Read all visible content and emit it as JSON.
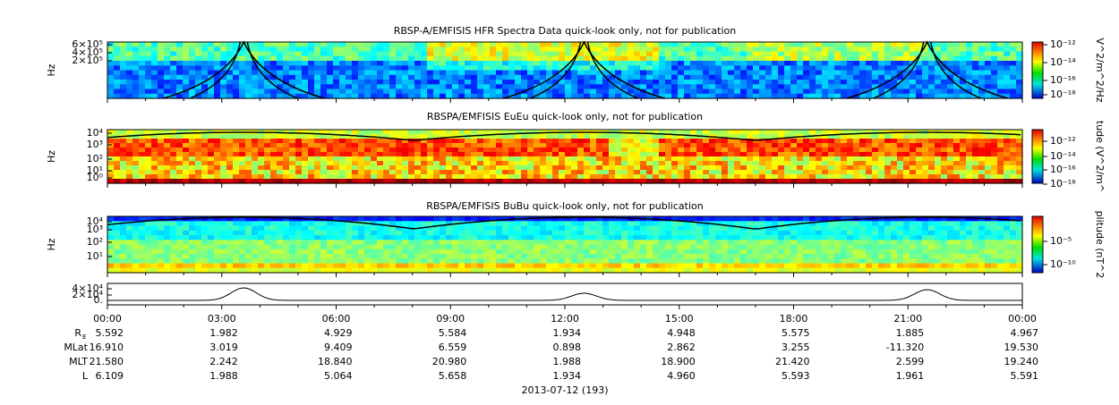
{
  "panels": [
    {
      "title": "RBSP-A/EMFISIS  HFR Spectra Data quick-look only, not for publication",
      "ylabel": "Hz",
      "yticks": [
        "6×10⁵",
        "4×10⁵",
        "2×10⁵"
      ],
      "colorbar": {
        "label": "V^2/m^2/Hz",
        "ticks": [
          "10⁻¹²",
          "10⁻¹⁴",
          "10⁻¹⁶",
          "10⁻¹⁸"
        ]
      }
    },
    {
      "title": "RBSPA/EMFISIS  EuEu quick-look only, not for publication",
      "ylabel": "Hz",
      "yticks": [
        "10⁴",
        "10³",
        "10²",
        "10¹",
        "10⁰"
      ],
      "colorbar": {
        "label": "tude (V^2/m^",
        "ticks": [
          "10⁻¹²",
          "10⁻¹⁴",
          "10⁻¹⁶",
          "10⁻¹⁸"
        ]
      }
    },
    {
      "title": "RBSPA/EMFISIS  BuBu quick-look only, not for publication",
      "ylabel": "Hz",
      "yticks": [
        "10⁴",
        "10³",
        "10²",
        "10¹"
      ],
      "colorbar": {
        "label": "plitude (nT^2",
        "ticks": [
          "10⁻⁵",
          "10⁻¹⁰"
        ]
      }
    },
    {
      "yticks": [
        "4×10⁴",
        "2×10⁴",
        "0."
      ]
    }
  ],
  "time_ticks": [
    "00:00",
    "03:00",
    "06:00",
    "09:00",
    "12:00",
    "15:00",
    "18:00",
    "21:00",
    "00:00"
  ],
  "ephemeris": [
    {
      "label": "R",
      "sub": "E",
      "values": [
        "5.592",
        "1.982",
        "4.929",
        "5.584",
        "1.934",
        "4.948",
        "5.575",
        "1.885",
        "4.967"
      ]
    },
    {
      "label": "MLat",
      "values": [
        "16.910",
        "3.019",
        "9.409",
        "6.559",
        "0.898",
        "2.862",
        "3.255",
        "-11.320",
        "19.530"
      ]
    },
    {
      "label": "MLT",
      "values": [
        "21.580",
        "2.242",
        "18.840",
        "20.980",
        "1.988",
        "18.900",
        "21.420",
        "2.599",
        "19.240"
      ]
    },
    {
      "label": "L",
      "values": [
        "6.109",
        "1.988",
        "5.064",
        "5.658",
        "1.934",
        "4.960",
        "5.593",
        "1.961",
        "5.591"
      ]
    }
  ],
  "date": "2013-07-12 (193)"
}
